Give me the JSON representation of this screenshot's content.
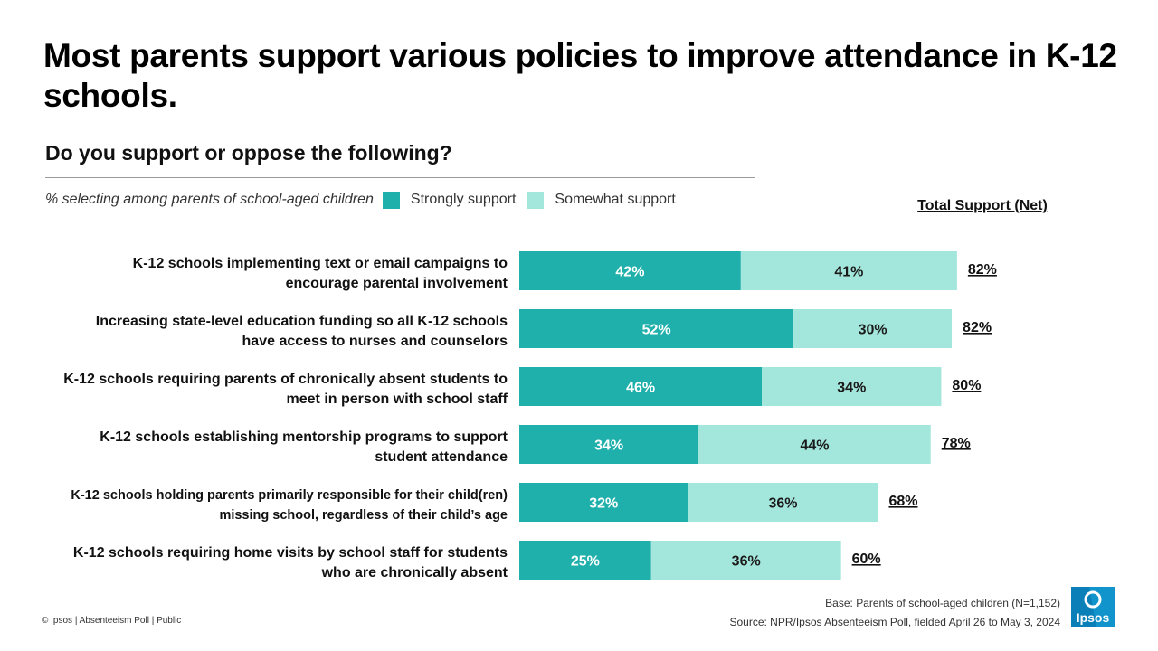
{
  "title": "Most parents support various policies to improve attendance in K-12 schools.",
  "question": "Do you support or oppose the following?",
  "legend": {
    "note": "% selecting among parents of school-aged children",
    "items": [
      {
        "label": "Strongly support",
        "color": "#1fb0ac"
      },
      {
        "label": "Somewhat support",
        "color": "#a3e6db"
      }
    ]
  },
  "total_header": "Total Support (Net)",
  "chart_data": {
    "type": "bar",
    "orientation": "horizontal",
    "stacked": true,
    "categories": [
      "K-12 schools implementing text or email campaigns to encourage parental involvement",
      "Increasing state-level education funding so all K-12 schools have access to nurses and counselors",
      "K-12 schools requiring parents of chronically absent students to meet in person with school staff",
      "K-12 schools establishing mentorship programs to support student attendance",
      "K-12 schools holding parents primarily responsible for their child(ren) missing school, regardless of their child’s age",
      "K-12 schools requiring home visits by school staff for students who are chronically absent"
    ],
    "series": [
      {
        "name": "Strongly support",
        "values": [
          42,
          52,
          46,
          34,
          32,
          25
        ],
        "labels": [
          "42%",
          "52%",
          "46%",
          "34%",
          "32%",
          "25%"
        ],
        "color": "#1fb0ac"
      },
      {
        "name": "Somewhat support",
        "values": [
          41,
          30,
          34,
          44,
          36,
          36
        ],
        "labels": [
          "41%",
          "30%",
          "34%",
          "44%",
          "36%",
          "36%"
        ],
        "color": "#a3e6db"
      }
    ],
    "totals": [
      "82%",
      "82%",
      "80%",
      "78%",
      "68%",
      "60%"
    ],
    "xlim": [
      0,
      100
    ],
    "legend_position": "top"
  },
  "footer": {
    "left": "© Ipsos | Absenteeism Poll | Public",
    "base": "Base: Parents of school-aged children (N=1,152)",
    "source": "Source: NPR/Ipsos Absenteeism Poll, fielded April 26 to May 3, 2024"
  },
  "logo": {
    "text": "Ipsos",
    "color": "#009fe3"
  }
}
